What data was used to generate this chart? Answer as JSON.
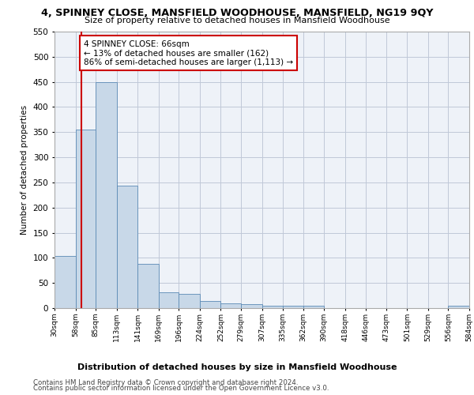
{
  "title1": "4, SPINNEY CLOSE, MANSFIELD WOODHOUSE, MANSFIELD, NG19 9QY",
  "title2": "Size of property relative to detached houses in Mansfield Woodhouse",
  "xlabel": "Distribution of detached houses by size in Mansfield Woodhouse",
  "ylabel": "Number of detached properties",
  "footer1": "Contains HM Land Registry data © Crown copyright and database right 2024.",
  "footer2": "Contains public sector information licensed under the Open Government Licence v3.0.",
  "annotation_title": "4 SPINNEY CLOSE: 66sqm",
  "annotation_line1": "← 13% of detached houses are smaller (162)",
  "annotation_line2": "86% of semi-detached houses are larger (1,113) →",
  "bar_edges": [
    30,
    58,
    85,
    113,
    141,
    169,
    196,
    224,
    252,
    279,
    307,
    335,
    362,
    390,
    418,
    446,
    473,
    501,
    529,
    556,
    584
  ],
  "bar_heights": [
    103,
    355,
    449,
    244,
    88,
    31,
    29,
    14,
    9,
    8,
    5,
    5,
    5,
    0,
    0,
    0,
    0,
    0,
    0,
    5
  ],
  "property_value": 66,
  "bar_color": "#c8d8e8",
  "bar_edge_color": "#5b8ab5",
  "vline_color": "#cc0000",
  "annotation_box_edge": "#cc0000",
  "annotation_box_fill": "white",
  "background_color": "#eef2f8",
  "grid_color": "#c0c8d8",
  "ylim": [
    0,
    550
  ],
  "xlim": [
    30,
    584
  ]
}
